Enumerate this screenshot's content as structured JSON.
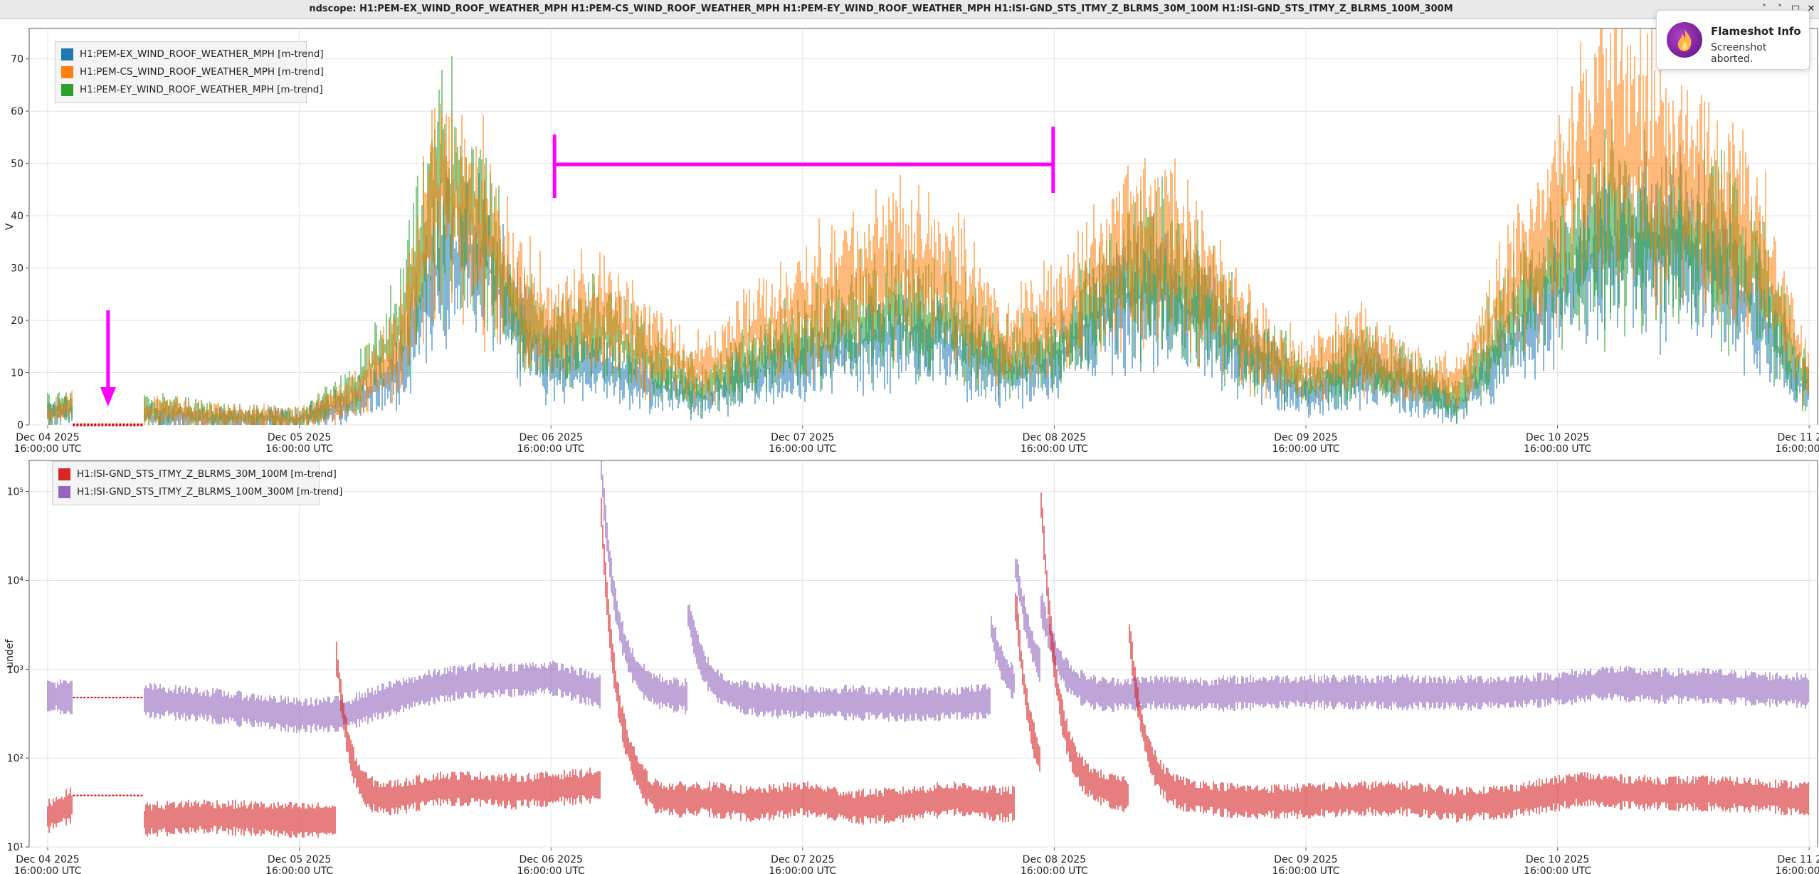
{
  "window": {
    "title": "ndscope: H1:PEM-EX_WIND_ROOF_WEATHER_MPH H1:PEM-CS_WIND_ROOF_WEATHER_MPH H1:PEM-EY_WIND_ROOF_WEATHER_MPH H1:ISI-GND_STS_ITMY_Z_BLRMS_30M_100M H1:ISI-GND_STS_ITMY_Z_BLRMS_100M_300M",
    "controls": {
      "minimize": "˄",
      "maximize": "˅",
      "restore": "□",
      "close": "✕"
    }
  },
  "notification": {
    "title": "Flameshot Info",
    "message": "Screenshot aborted.",
    "icon": "flameshot-icon"
  },
  "x_axis_ticks": [
    {
      "line1": "Dec 04 2025",
      "line2": "16:00:00 UTC"
    },
    {
      "line1": "Dec 05 2025",
      "line2": "16:00:00 UTC"
    },
    {
      "line1": "Dec 06 2025",
      "line2": "16:00:00 UTC"
    },
    {
      "line1": "Dec 07 2025",
      "line2": "16:00:00 UTC"
    },
    {
      "line1": "Dec 08 2025",
      "line2": "16:00:00 UTC"
    },
    {
      "line1": "Dec 09 2025",
      "line2": "16:00:00 UTC"
    },
    {
      "line1": "Dec 10 2025",
      "line2": "16:00:00 UTC"
    },
    {
      "line1": "Dec 11 2025",
      "line2": "16:00:00 UTC"
    }
  ],
  "annotations": {
    "arrow_color": "#ff00ff",
    "bracket_color": "#ff00ff",
    "gap_marker_color": "#dd0000",
    "bracket_range": [
      "Dec 06 2025 16:00:00 UTC",
      "Dec 08 2025 16:00:00 UTC"
    ]
  },
  "chart_data": [
    {
      "type": "line",
      "panel": "top",
      "ylabel": "V",
      "ylim": [
        0,
        75
      ],
      "yticks": [
        0,
        10,
        20,
        30,
        40,
        50,
        60,
        70
      ],
      "ytick_labels": [
        "0",
        "10",
        "20",
        "30",
        "40",
        "50",
        "60",
        "70"
      ],
      "y_scale": "linear",
      "grid": true,
      "legend_position": "top-left",
      "xlim": [
        "Dec 04 2025 16:00:00 UTC",
        "Dec 11 2025 16:00:00 UTC"
      ],
      "x_days": [
        0,
        0.1,
        0.18,
        0.38,
        0.6,
        1.0,
        1.2,
        1.4,
        1.55,
        1.7,
        1.85,
        2.0,
        2.2,
        2.4,
        2.6,
        2.8,
        3.0,
        3.2,
        3.4,
        3.6,
        3.8,
        4.0,
        4.2,
        4.4,
        4.6,
        4.8,
        5.0,
        5.2,
        5.4,
        5.6,
        5.8,
        6.0,
        6.1,
        6.2,
        6.4,
        6.6,
        6.8,
        6.95,
        7.0
      ],
      "series": [
        {
          "name": "H1:PEM-EX_WIND_ROOF_WEATHER_MPH [m-trend]",
          "color": "#1f77b4",
          "values": [
            2,
            3,
            null,
            2,
            1,
            1,
            4,
            10,
            30,
            35,
            20,
            12,
            12,
            8,
            5,
            10,
            12,
            15,
            18,
            15,
            10,
            12,
            22,
            25,
            20,
            12,
            6,
            10,
            8,
            3,
            15,
            25,
            30,
            33,
            35,
            30,
            22,
            8,
            7
          ]
        },
        {
          "name": "H1:PEM-CS_WIND_ROOF_WEATHER_MPH [m-trend]",
          "color": "#ff7f0e",
          "values": [
            2,
            4,
            null,
            3,
            2,
            1,
            5,
            15,
            45,
            40,
            25,
            18,
            22,
            15,
            10,
            18,
            22,
            28,
            30,
            27,
            15,
            20,
            30,
            35,
            28,
            15,
            10,
            15,
            10,
            8,
            25,
            40,
            50,
            55,
            48,
            42,
            35,
            15,
            10
          ]
        },
        {
          "name": "H1:PEM-EY_WIND_ROOF_WEATHER_MPH [m-trend]",
          "color": "#2ca02c",
          "values": [
            3,
            4,
            null,
            3,
            2,
            1,
            6,
            18,
            48,
            42,
            22,
            15,
            18,
            12,
            7,
            12,
            16,
            20,
            22,
            20,
            12,
            15,
            25,
            30,
            23,
            14,
            8,
            12,
            9,
            5,
            20,
            30,
            35,
            37,
            36,
            35,
            28,
            12,
            8
          ]
        }
      ]
    },
    {
      "type": "line",
      "panel": "bottom",
      "ylabel": "undef",
      "y_scale": "log",
      "ylim": [
        10,
        200000
      ],
      "yticks": [
        10,
        100,
        1000,
        10000,
        100000
      ],
      "ytick_labels": [
        "10¹",
        "10²",
        "10³",
        "10⁴",
        "10⁵"
      ],
      "grid": true,
      "legend_position": "top-left",
      "xlim": [
        "Dec 04 2025 16:00:00 UTC",
        "Dec 11 2025 16:00:00 UTC"
      ],
      "x_days": [
        0,
        0.1,
        0.18,
        0.38,
        0.6,
        1.0,
        1.2,
        1.4,
        1.55,
        1.7,
        1.85,
        2.0,
        2.2,
        2.4,
        2.6,
        2.8,
        3.0,
        3.2,
        3.4,
        3.6,
        3.8,
        4.0,
        4.2,
        4.4,
        4.6,
        4.8,
        5.0,
        5.2,
        5.4,
        5.6,
        5.8,
        6.0,
        6.1,
        6.2,
        6.4,
        6.6,
        6.8,
        6.95,
        7.0
      ],
      "series": [
        {
          "name": "H1:ISI-GND_STS_ITMY_Z_BLRMS_30M_100M [m-trend]",
          "color": "#d62728",
          "values": [
            22,
            30,
            null,
            20,
            22,
            20,
            20,
            35,
            45,
            45,
            42,
            45,
            50,
            30,
            35,
            30,
            35,
            28,
            30,
            35,
            30,
            35,
            40,
            35,
            35,
            32,
            33,
            35,
            35,
            30,
            32,
            40,
            45,
            42,
            40,
            40,
            38,
            35,
            35
          ]
        },
        {
          "name": "H1:ISI-GND_STS_ITMY_Z_BLRMS_100M_300M [m-trend]",
          "color": "#9467bd",
          "values": [
            500,
            480,
            null,
            450,
            400,
            300,
            320,
            500,
            650,
            750,
            750,
            800,
            550,
            500,
            480,
            450,
            430,
            420,
            400,
            410,
            450,
            500,
            500,
            550,
            520,
            550,
            560,
            550,
            550,
            540,
            550,
            600,
            650,
            700,
            650,
            650,
            600,
            580,
            560
          ]
        }
      ],
      "spikes": [
        {
          "series": 1,
          "x": 2.2,
          "value": 200000
        },
        {
          "series": 0,
          "x": 2.2,
          "value": 60000
        },
        {
          "series": 1,
          "x": 3.85,
          "value": 20000
        },
        {
          "series": 1,
          "x": 3.75,
          "value": 3000
        },
        {
          "series": 0,
          "x": 3.85,
          "value": 5000
        },
        {
          "series": 1,
          "x": 2.55,
          "value": 4000
        },
        {
          "series": 0,
          "x": 3.95,
          "value": 70000
        },
        {
          "series": 1,
          "x": 3.95,
          "value": 5000
        },
        {
          "series": 0,
          "x": 4.3,
          "value": 2500
        },
        {
          "series": 0,
          "x": 1.15,
          "value": 1300
        },
        {
          "series": 0,
          "x": 0.12,
          "value": 80
        }
      ]
    }
  ]
}
